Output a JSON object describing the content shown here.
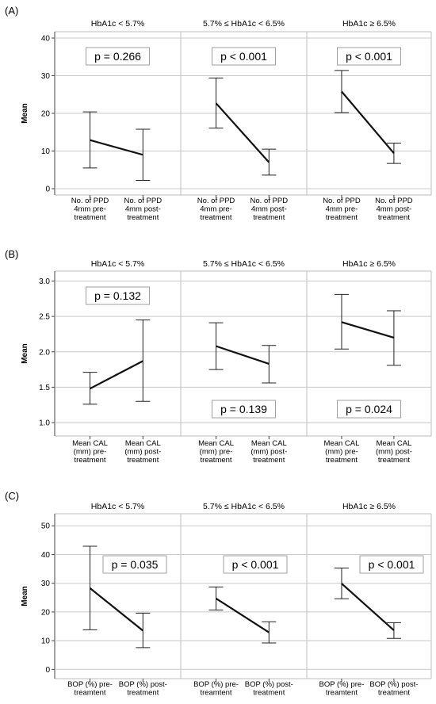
{
  "chart_data": [
    {
      "label": "(A)",
      "type": "line",
      "ylabel": "Mean",
      "ylim": [
        0,
        40
      ],
      "yticks": [
        0,
        10,
        20,
        30,
        40
      ],
      "grid": true,
      "categories": [
        "No. of PPD 4mm pre-treatment",
        "No. of PPD 4mm post-treatment"
      ],
      "category_lines": [
        [
          "No. of PPD",
          "4mm pre-",
          "treatment"
        ],
        [
          "No. of PPD",
          "4mm post-",
          "treatment"
        ]
      ],
      "panels": [
        {
          "title": "HbA1c < 5.7%",
          "p_value": "p = 0.266",
          "p_position": "top",
          "mean": [
            12.9,
            9.0
          ],
          "error_low": [
            5.5,
            2.2
          ],
          "error_high": [
            20.4,
            15.8
          ]
        },
        {
          "title": "5.7% ≤ HbA1c < 6.5%",
          "p_value": "p < 0.001",
          "p_position": "top",
          "mean": [
            22.7,
            7.0
          ],
          "error_low": [
            16.1,
            3.6
          ],
          "error_high": [
            29.4,
            10.5
          ]
        },
        {
          "title": "HbA1c ≥ 6.5%",
          "p_value": "p < 0.001",
          "p_position": "top",
          "mean": [
            25.8,
            9.4
          ],
          "error_low": [
            20.2,
            6.7
          ],
          "error_high": [
            31.4,
            12.1
          ]
        }
      ]
    },
    {
      "label": "(B)",
      "type": "line",
      "ylabel": "Mean",
      "ylim": [
        0.9,
        3.05
      ],
      "yticks": [
        1.0,
        1.5,
        2.0,
        2.5,
        3.0
      ],
      "ytick_labels": [
        "1.0",
        "1.5",
        "2.0",
        "2.5",
        "3.0"
      ],
      "grid": true,
      "categories": [
        "Mean CAL (mm) pre-treatment",
        "Mean CAL (mm) post-treatment"
      ],
      "category_lines": [
        [
          "Mean CAL",
          "(mm) pre-",
          "treatment"
        ],
        [
          "Mean CAL",
          "(mm) post-",
          "treatment"
        ]
      ],
      "panels": [
        {
          "title": "HbA1c < 5.7%",
          "p_value": "p = 0.132",
          "p_position": "top",
          "mean": [
            1.48,
            1.87
          ],
          "error_low": [
            1.26,
            1.3
          ],
          "error_high": [
            1.71,
            2.45
          ]
        },
        {
          "title": "5.7% ≤ HbA1c < 6.5%",
          "p_value": "p = 0.139",
          "p_position": "bottom",
          "mean": [
            2.08,
            1.83
          ],
          "error_low": [
            1.75,
            1.56
          ],
          "error_high": [
            2.41,
            2.09
          ]
        },
        {
          "title": "HbA1c ≥ 6.5%",
          "p_value": "p = 0.024",
          "p_position": "bottom",
          "mean": [
            2.42,
            2.2
          ],
          "error_low": [
            2.04,
            1.81
          ],
          "error_high": [
            2.81,
            2.58
          ]
        }
      ]
    },
    {
      "label": "(C)",
      "type": "line",
      "ylabel": "Mean",
      "ylim": [
        -1,
        52
      ],
      "yticks": [
        0,
        10,
        20,
        30,
        40,
        50
      ],
      "grid": true,
      "categories": [
        "BOP (%) pre-treamtent",
        "BOP (%) post-treatment"
      ],
      "category_lines": [
        [
          "BOP (%) pre-",
          "treamtent"
        ],
        [
          "BOP (%) post-",
          "treatment"
        ]
      ],
      "panels": [
        {
          "title": "HbA1c < 5.7%",
          "p_value": "p = 0.035",
          "p_position": "middle",
          "mean": [
            28.3,
            13.5
          ],
          "error_low": [
            13.8,
            7.6
          ],
          "error_high": [
            42.9,
            19.6
          ]
        },
        {
          "title": "5.7% ≤ HbA1c < 6.5%",
          "p_value": "p < 0.001",
          "p_position": "middle",
          "mean": [
            24.7,
            12.9
          ],
          "error_low": [
            20.7,
            9.2
          ],
          "error_high": [
            28.7,
            16.6
          ]
        },
        {
          "title": "HbA1c ≥ 6.5%",
          "p_value": "p < 0.001",
          "p_position": "middle",
          "mean": [
            29.9,
            13.6
          ],
          "error_low": [
            24.6,
            10.8
          ],
          "error_high": [
            35.3,
            16.3
          ]
        }
      ]
    }
  ]
}
